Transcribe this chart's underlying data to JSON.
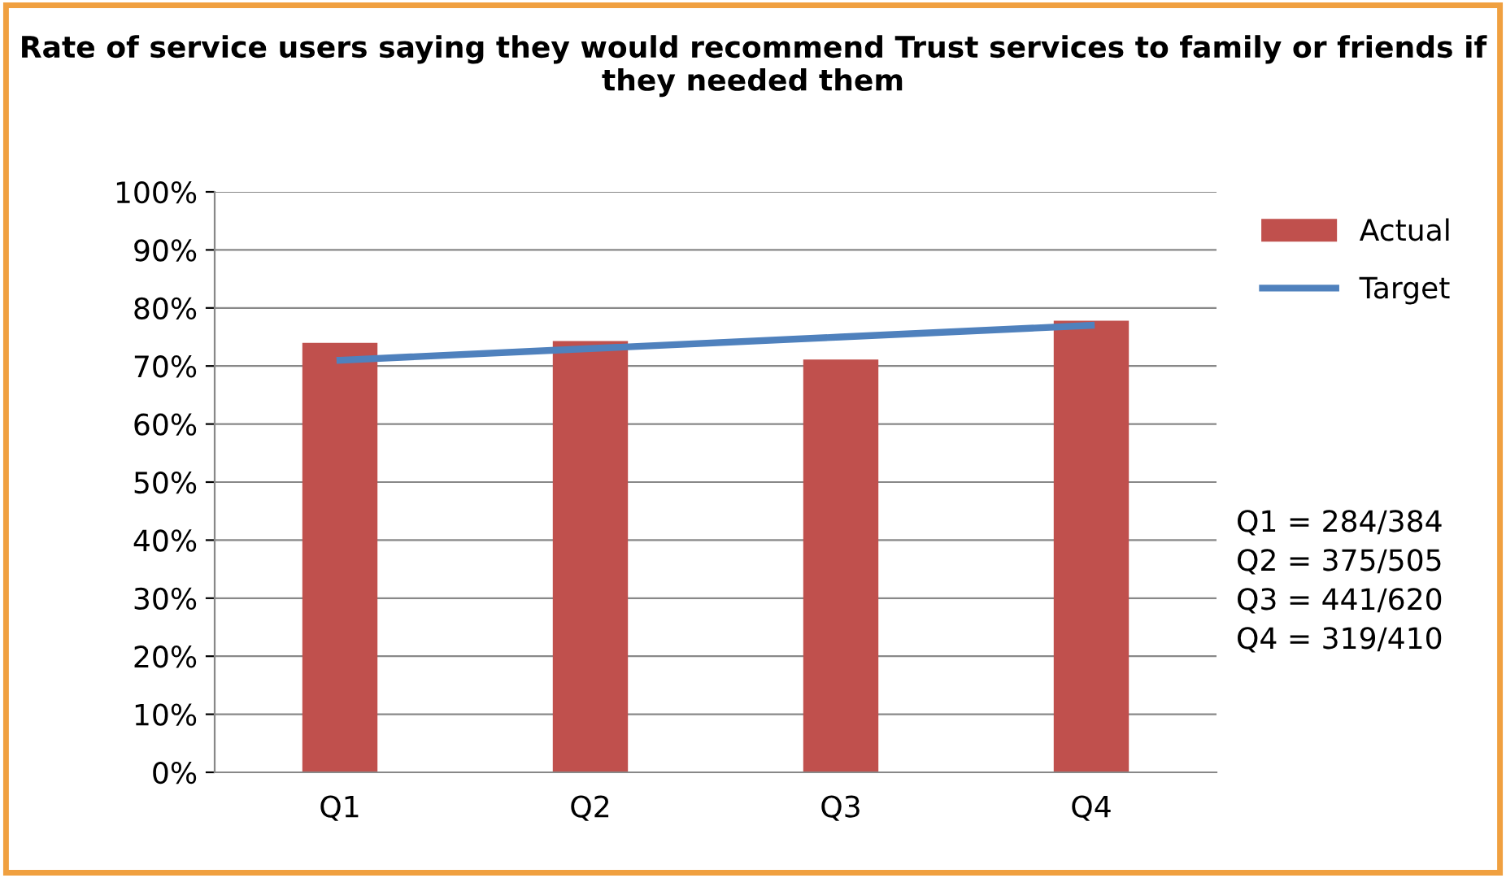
{
  "chart_data": {
    "type": "bar",
    "title": "Rate of service users saying they would recommend Trust services to family or friends if they needed them",
    "categories": [
      "Q1",
      "Q2",
      "Q3",
      "Q4"
    ],
    "series": [
      {
        "name": "Actual",
        "color": "#c0504d",
        "values": [
          74.0,
          74.3,
          71.1,
          77.8
        ]
      },
      {
        "name": "Target",
        "type": "line",
        "color": "#4f81bd",
        "values": [
          71,
          73,
          75,
          77
        ]
      }
    ],
    "ylim": [
      0,
      100
    ],
    "yticks": [
      {
        "value": 0,
        "label": "0%"
      },
      {
        "value": 10,
        "label": "10%"
      },
      {
        "value": 20,
        "label": "20%"
      },
      {
        "value": 30,
        "label": "30%"
      },
      {
        "value": 40,
        "label": "40%"
      },
      {
        "value": 50,
        "label": "50%"
      },
      {
        "value": 60,
        "label": "60%"
      },
      {
        "value": 70,
        "label": "70%"
      },
      {
        "value": 80,
        "label": "80%"
      },
      {
        "value": 90,
        "label": "90%"
      },
      {
        "value": 100,
        "label": "100%"
      }
    ],
    "grid": "y",
    "legend": "right",
    "marker": "none",
    "annotations": [
      "Q1 = 284/384",
      "Q2 = 375/505",
      "Q3 = 441/620",
      "Q4 = 319/410"
    ]
  }
}
